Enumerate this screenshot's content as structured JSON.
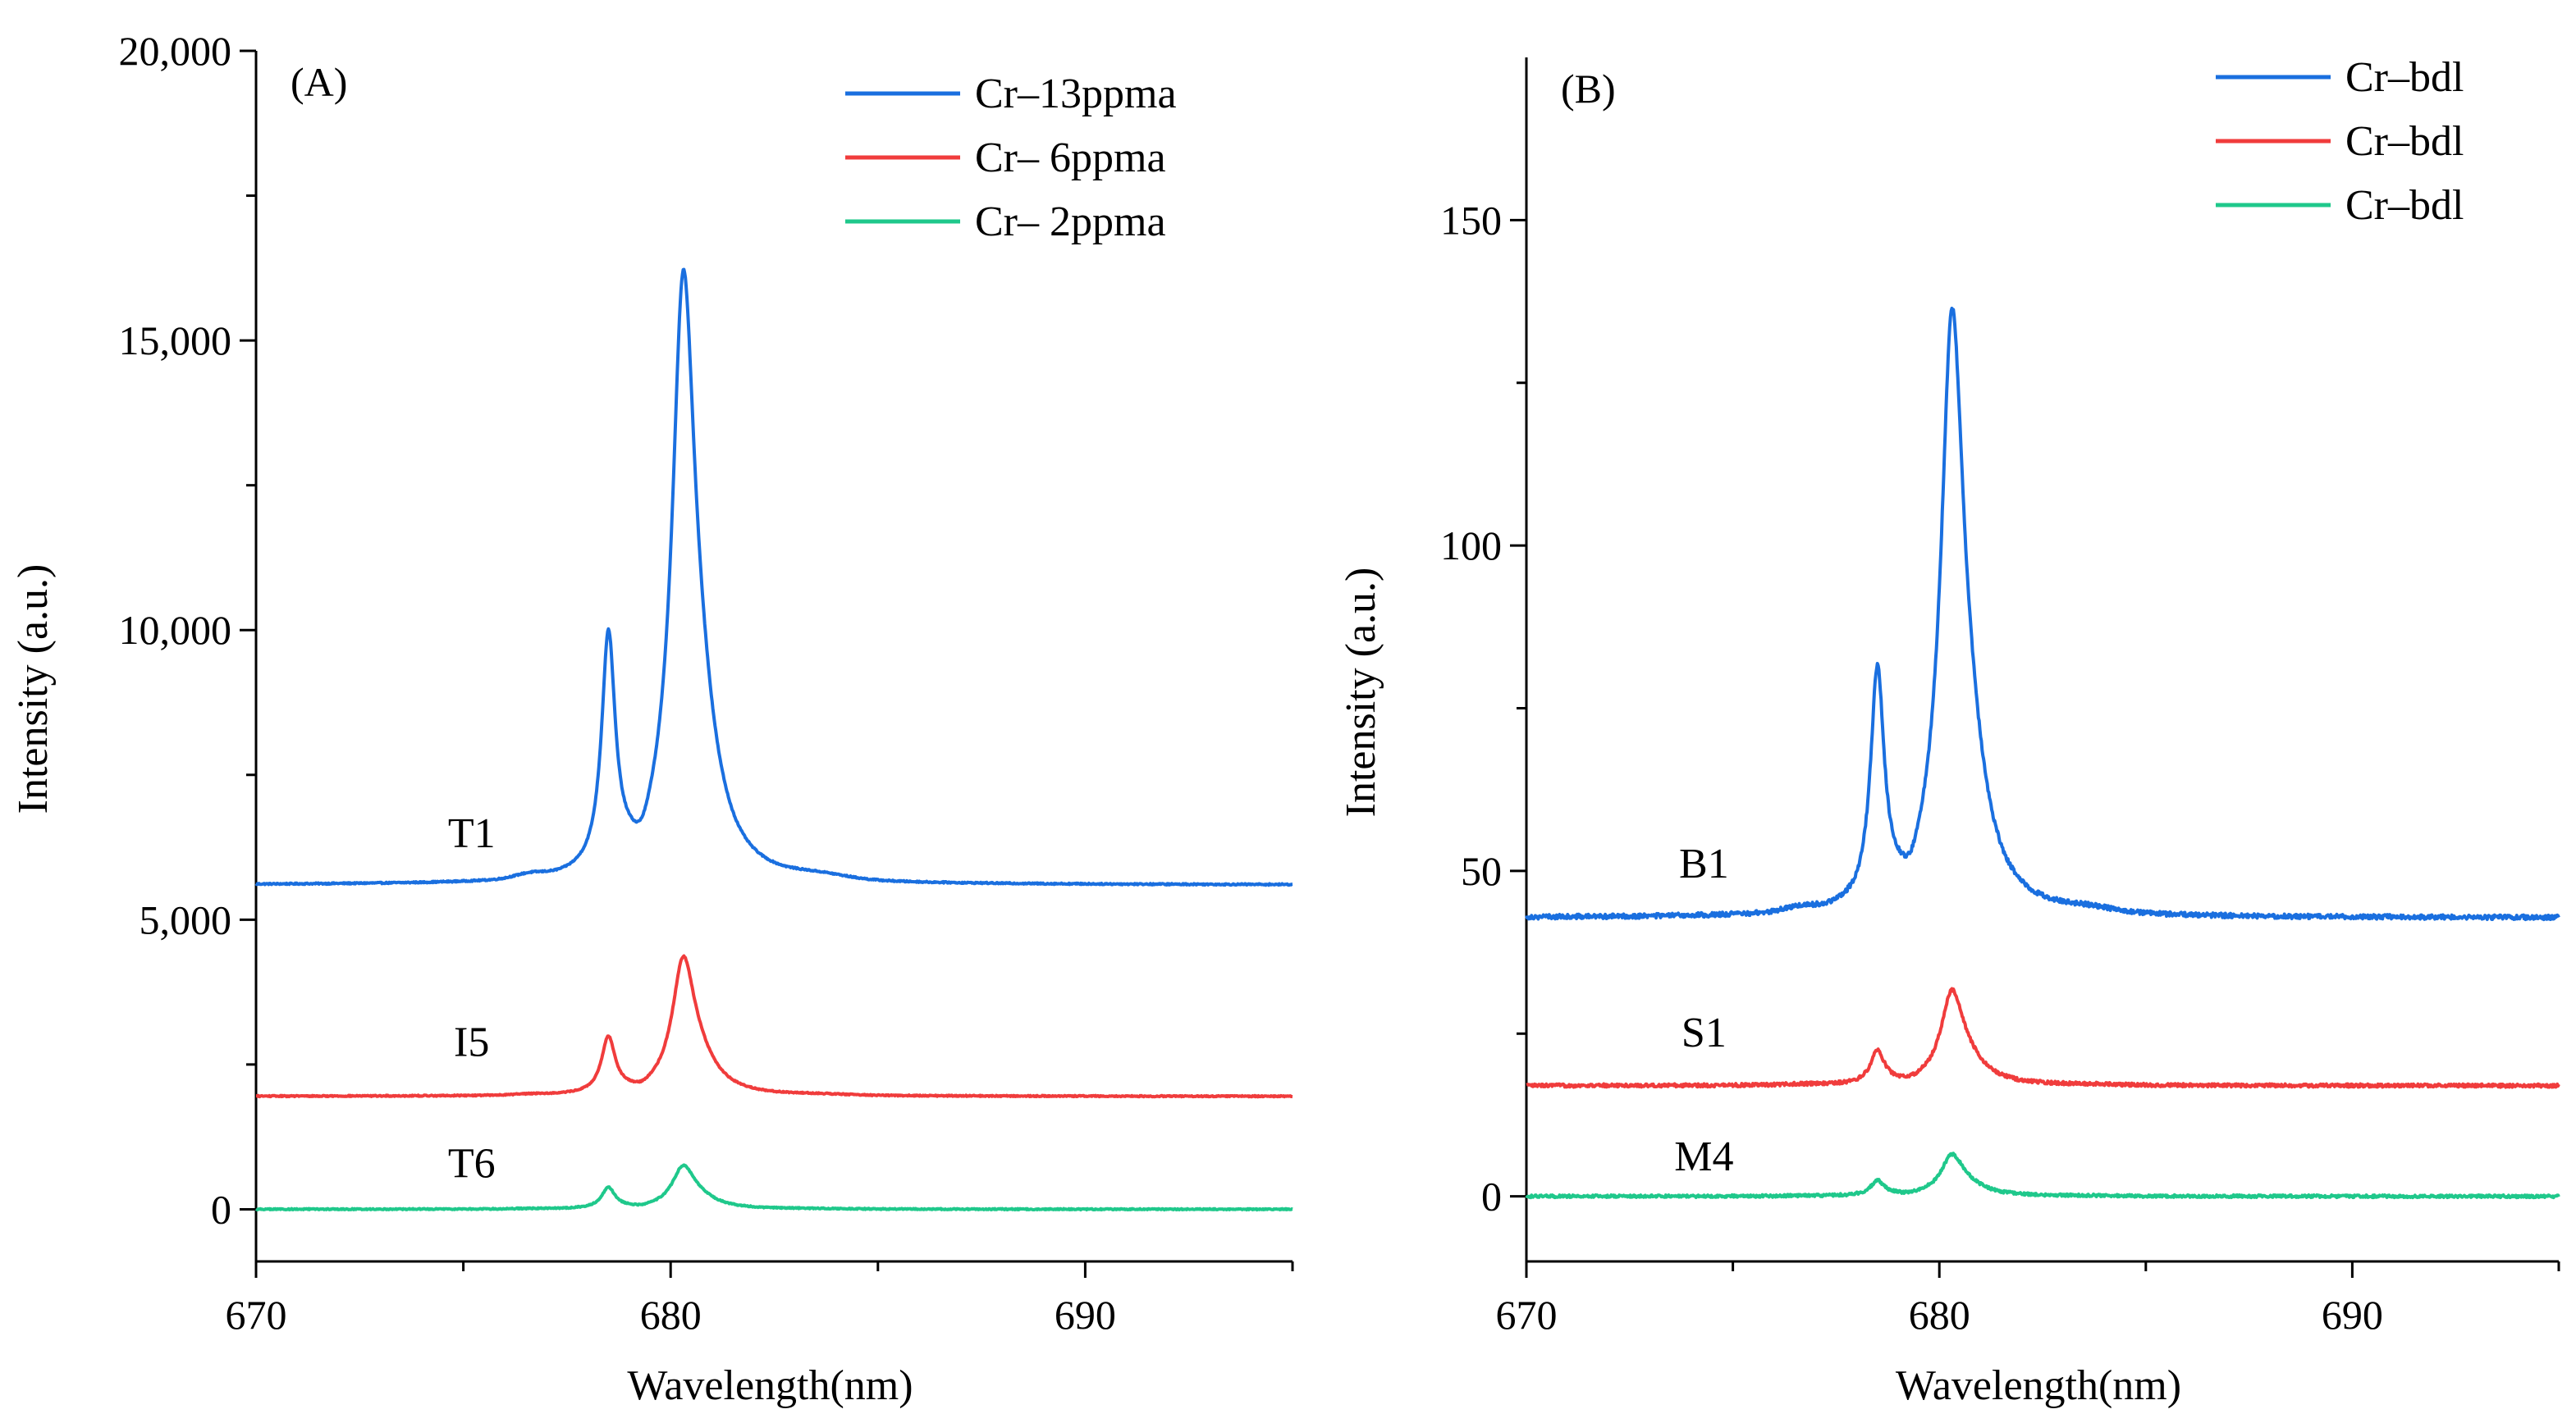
{
  "chart_data": [
    {
      "type": "line",
      "panel_label": "(A)",
      "xlabel": "Wavelength(nm)",
      "ylabel": "Intensity (a.u.)",
      "xlim": [
        670,
        695
      ],
      "ylim": [
        -900,
        20000
      ],
      "x_ticks": [
        670,
        680,
        690
      ],
      "x_tick_labels": [
        "670",
        "680",
        "690"
      ],
      "x_minor_ticks": [
        675,
        685,
        695
      ],
      "y_ticks": [
        0,
        5000,
        10000,
        15000,
        20000
      ],
      "y_tick_labels": [
        "0",
        "5,000",
        "10,000",
        "15,000",
        "20,000"
      ],
      "y_minor_ticks": [
        2500,
        7500,
        12500,
        17500
      ],
      "legend_position": "top-right",
      "series": [
        {
          "name": "Cr–13ppma",
          "label": "T1",
          "label_x": 675.2,
          "label_y": 6250,
          "color": "#1a6fdf",
          "baseline": 5600,
          "peak1": 9600,
          "peak2": 16800,
          "noise": 12
        },
        {
          "name": "Cr– 6ppma",
          "label": "I5",
          "label_x": 675.2,
          "label_y": 2650,
          "color": "#f03c3c",
          "baseline": 1950,
          "peak1": 2900,
          "peak2": 4500,
          "noise": 10
        },
        {
          "name": "Cr– 2ppma",
          "label": "T6",
          "label_x": 675.2,
          "label_y": 550,
          "color": "#1fc88b",
          "baseline": 0,
          "peak1": 350,
          "peak2": 800,
          "noise": 10
        }
      ],
      "peaks_nm": [
        678.5,
        680.3
      ]
    },
    {
      "type": "line",
      "panel_label": "(B)",
      "xlabel": "Wavelength(nm)",
      "ylabel": "Intensity (a.u.)",
      "xlim": [
        670,
        695
      ],
      "ylim": [
        -10,
        175
      ],
      "x_ticks": [
        670,
        680,
        690
      ],
      "x_tick_labels": [
        "670",
        "680",
        "690"
      ],
      "x_minor_ticks": [
        675,
        685,
        695
      ],
      "y_ticks": [
        0,
        50,
        100,
        150
      ],
      "y_tick_labels": [
        "0",
        "50",
        "100",
        "150"
      ],
      "y_minor_ticks": [
        25,
        75,
        125
      ],
      "legend_position": "top-right",
      "series": [
        {
          "name": "Cr–bdl",
          "label": "B1",
          "label_x": 674.3,
          "label_y": 49,
          "color": "#1a6fdf",
          "baseline": 42.8,
          "peak1": 78,
          "peak2": 141.5,
          "noise": 0.35
        },
        {
          "name": "Cr–bdl",
          "label": "S1",
          "label_x": 674.3,
          "label_y": 23,
          "color": "#f03c3c",
          "baseline": 17,
          "peak1": 22,
          "peak2": 32.5,
          "noise": 0.25
        },
        {
          "name": "Cr–bdl",
          "label": "M4",
          "label_x": 674.3,
          "label_y": 4,
          "color": "#1fc88b",
          "baseline": 0,
          "peak1": 2.2,
          "peak2": 6.8,
          "noise": 0.2
        }
      ],
      "peaks_nm": [
        678.5,
        680.3
      ]
    }
  ]
}
